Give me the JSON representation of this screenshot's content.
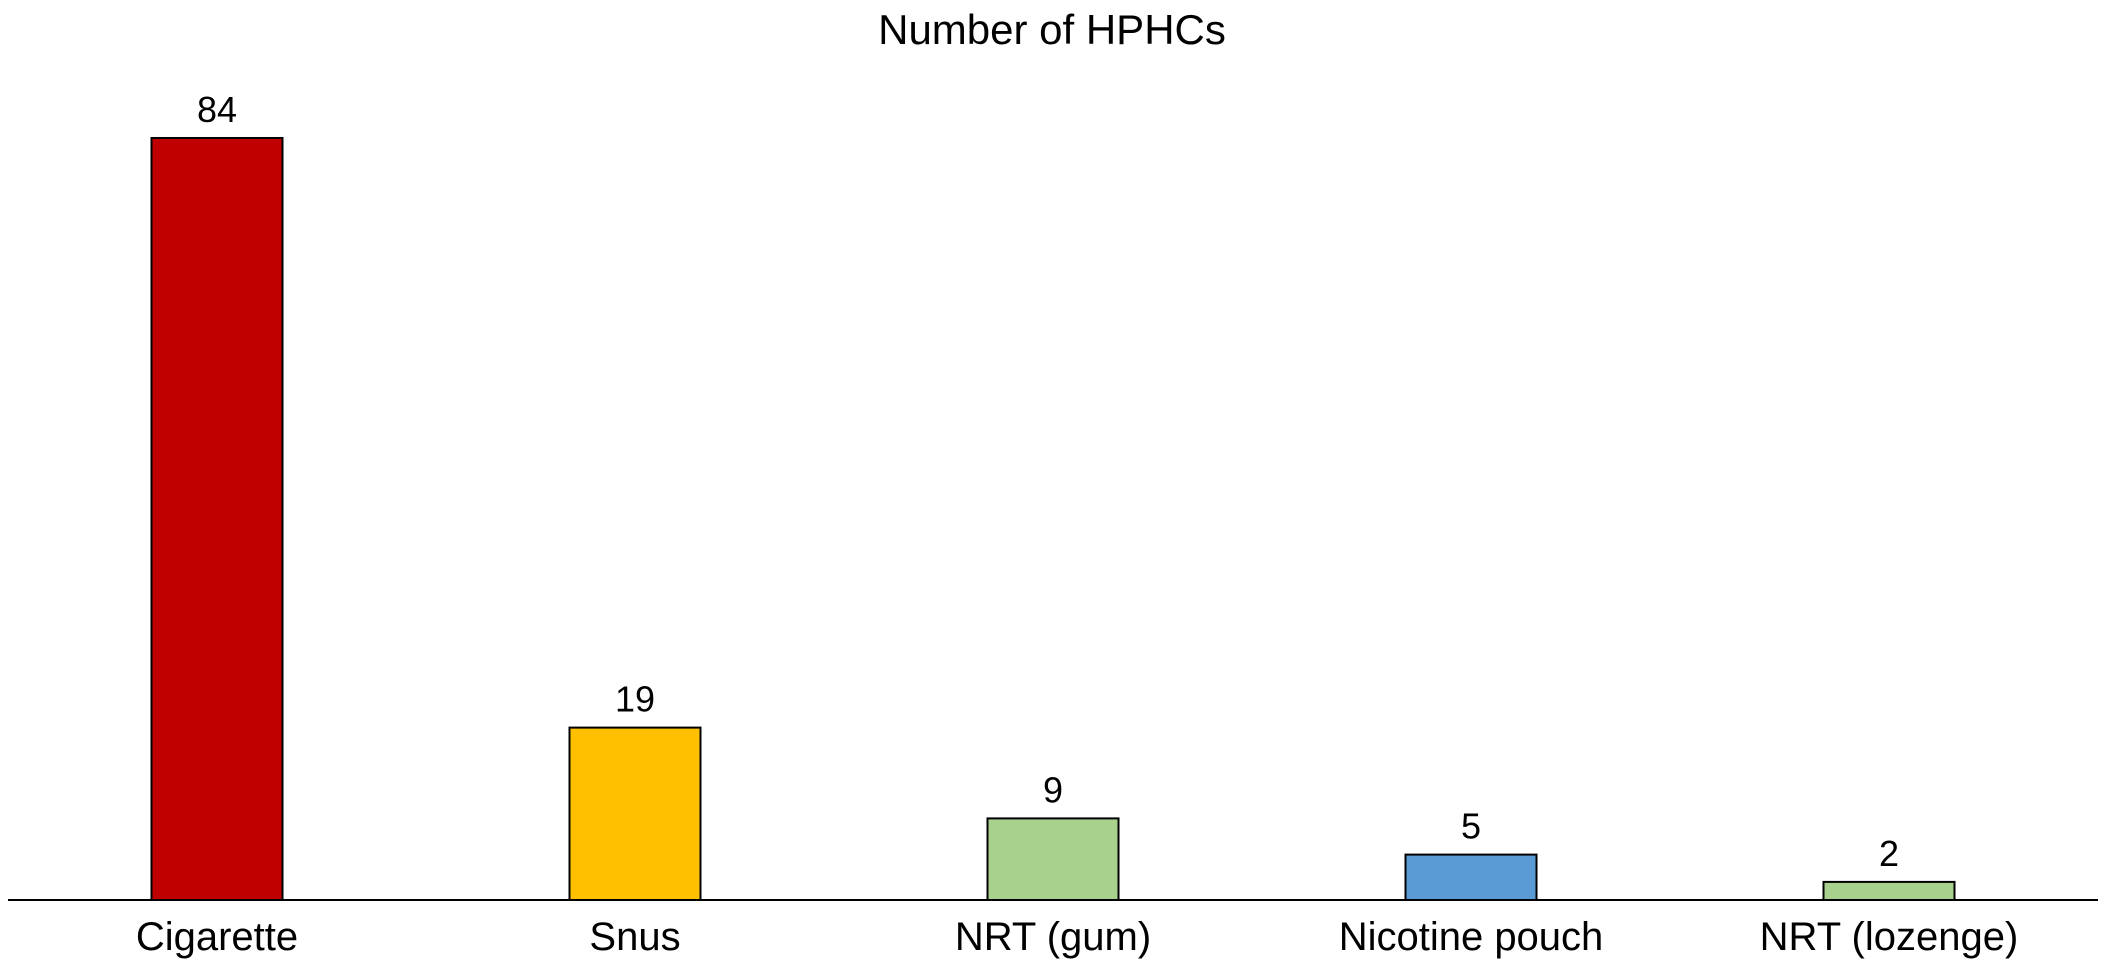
{
  "chart_data": {
    "type": "bar",
    "title": "Number of HPHCs",
    "xlabel": "",
    "ylabel": "",
    "categories": [
      "Cigarette",
      "Snus",
      "NRT (gum)",
      "Nicotine pouch",
      "NRT (lozenge)"
    ],
    "values": [
      84,
      19,
      9,
      5,
      2
    ],
    "data_labels": [
      "84",
      "19",
      "9",
      "5",
      "2"
    ],
    "bar_colors": [
      "#c00000",
      "#ffc000",
      "#a9d18e",
      "#5b9bd5",
      "#a9d18e"
    ],
    "bar_edge_color": "#000000",
    "ylim": [
      0,
      84
    ],
    "y_axis_visible": false,
    "grid": false,
    "legend": "none"
  }
}
